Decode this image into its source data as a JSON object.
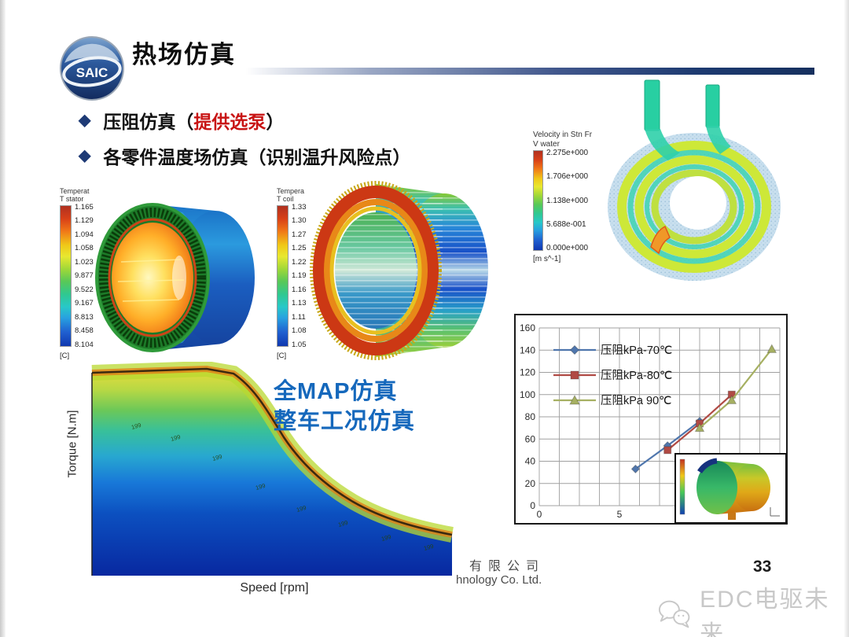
{
  "slide": {
    "logo_text": "SAIC",
    "title": "热场仿真",
    "bullet1_pre": "压阻仿真（",
    "bullet1_highlight": "提供选泵",
    "bullet1_post": "）",
    "bullet2": "各零件温度场仿真（识别温升风险点）",
    "footer_cn": "有限公司",
    "footer_en": "hnology Co. Ltd.",
    "page_number": "33",
    "watermark": "EDC电驱未来"
  },
  "colorbars": {
    "stator": {
      "title1": "Temperat",
      "title2": "T stator",
      "values": [
        "1.165",
        "1.129",
        "1.094",
        "1.058",
        "1.023",
        "9.877",
        "9.522",
        "9.167",
        "8.813",
        "8.458",
        "8.104"
      ],
      "unit": "[C]"
    },
    "coil": {
      "title1": "Tempera",
      "title2": "T coil",
      "values": [
        "1.33",
        "1.30",
        "1.27",
        "1.25",
        "1.22",
        "1.19",
        "1.16",
        "1.13",
        "1.11",
        "1.08",
        "1.05"
      ],
      "unit": "[C]"
    },
    "velocity": {
      "title1": "Velocity in Stn Fr",
      "title2": "V water",
      "values": [
        "2.275e+000",
        "1.706e+000",
        "1.138e+000",
        "5.688e-001",
        "0.000e+000"
      ],
      "unit": "[m s^-1]"
    }
  },
  "chart_data": [
    {
      "type": "line",
      "title": "",
      "xlabel": "",
      "ylabel": "",
      "xlim": [
        0,
        15
      ],
      "ylim": [
        0,
        160
      ],
      "x_ticks_visible": [
        "0",
        "5"
      ],
      "x_tick_values": [
        0,
        5
      ],
      "y_ticks": [
        0,
        20,
        40,
        60,
        80,
        100,
        120,
        140,
        160
      ],
      "grid": true,
      "legend_position": "upper-left-inside",
      "series": [
        {
          "name": "压阻kPa-70℃",
          "color": "#4f76ad",
          "marker": "diamond",
          "points": [
            [
              6,
              33
            ],
            [
              8,
              54
            ],
            [
              10,
              76
            ]
          ]
        },
        {
          "name": "压阻kPa-80℃",
          "color": "#b04a44",
          "marker": "square",
          "points": [
            [
              8,
              50
            ],
            [
              10,
              74
            ],
            [
              12,
              100
            ]
          ]
        },
        {
          "name": "压阻kPa 90℃",
          "color": "#a6b062",
          "marker": "triangle",
          "points": [
            [
              10,
              70
            ],
            [
              12,
              95
            ],
            [
              14.5,
              141
            ]
          ]
        }
      ]
    },
    {
      "type": "area",
      "title": "全MAP仿真 整车工况仿真 (torque-speed efficiency/temperature map)",
      "xlabel": "Speed [rpm]",
      "ylabel": "Torque [N.m]",
      "annotation_line1": "全MAP仿真",
      "annotation_line2": "整车工况仿真",
      "contour_label": "199",
      "envelope": "constant torque at low speed, constant-power hyperbolic decay at high speed",
      "colormap": "deep blue (low) through cyan/green to yellow-orange near the limit curve"
    }
  ],
  "colors": {
    "accent_navy": "#1d3a70",
    "highlight_red": "#c81414",
    "annotation_blue": "#1568bc",
    "watermark_gray": "#c8c8c8",
    "series_blue": "#4f76ad",
    "series_red": "#b04a44",
    "series_olive": "#a6b062"
  }
}
